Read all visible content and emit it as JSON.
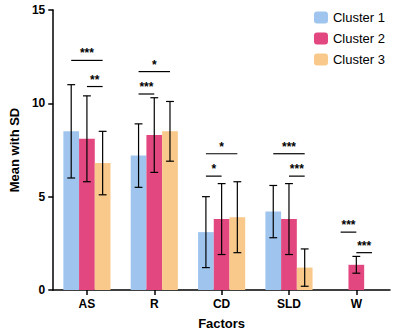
{
  "chart_data": {
    "type": "bar",
    "x_label": "Factors",
    "y_label": "Mean with SD",
    "categories": [
      "AS",
      "R",
      "CD",
      "SLD",
      "W"
    ],
    "series": [
      {
        "name": "Cluster 1",
        "color": "#9fc5ee",
        "values": [
          8.5,
          7.2,
          3.1,
          4.2,
          0
        ],
        "sd": [
          2.5,
          1.7,
          1.9,
          1.4,
          null
        ]
      },
      {
        "name": "Cluster 2",
        "color": "#e2487f",
        "values": [
          8.1,
          8.3,
          3.8,
          3.8,
          1.35
        ],
        "sd": [
          2.3,
          2.0,
          1.9,
          1.9,
          0.45
        ]
      },
      {
        "name": "Cluster 3",
        "color": "#f8c98a",
        "values": [
          6.8,
          8.5,
          3.9,
          1.2,
          0
        ],
        "sd": [
          1.7,
          1.6,
          1.9,
          1.0,
          null
        ]
      }
    ],
    "significance": [
      {
        "category": "AS",
        "from": "Cluster 1",
        "to": "Cluster 3",
        "label": "***",
        "y": 12.3
      },
      {
        "category": "AS",
        "from": "Cluster 2",
        "to": "Cluster 3",
        "label": "**",
        "y": 10.9
      },
      {
        "category": "R",
        "from": "Cluster 1",
        "to": "Cluster 3",
        "label": "*",
        "y": 11.7
      },
      {
        "category": "R",
        "from": "Cluster 1",
        "to": "Cluster 2",
        "label": "***",
        "y": 10.5
      },
      {
        "category": "CD",
        "from": "Cluster 1",
        "to": "Cluster 3",
        "label": "*",
        "y": 7.3
      },
      {
        "category": "CD",
        "from": "Cluster 1",
        "to": "Cluster 2",
        "label": "*",
        "y": 6.1
      },
      {
        "category": "SLD",
        "from": "Cluster 1",
        "to": "Cluster 3",
        "label": "***",
        "y": 7.3
      },
      {
        "category": "SLD",
        "from": "Cluster 2",
        "to": "Cluster 3",
        "label": "***",
        "y": 6.1
      },
      {
        "category": "W",
        "from": "Cluster 1",
        "to": "Cluster 2",
        "label": "***",
        "y": 3.1
      },
      {
        "category": "W",
        "from": "Cluster 2",
        "to": "Cluster 3",
        "label": "***",
        "y": 2.0
      }
    ],
    "ylim": [
      0,
      15
    ],
    "yticks": [
      0,
      5,
      10,
      15
    ],
    "grid": false,
    "legend": "top-right"
  }
}
